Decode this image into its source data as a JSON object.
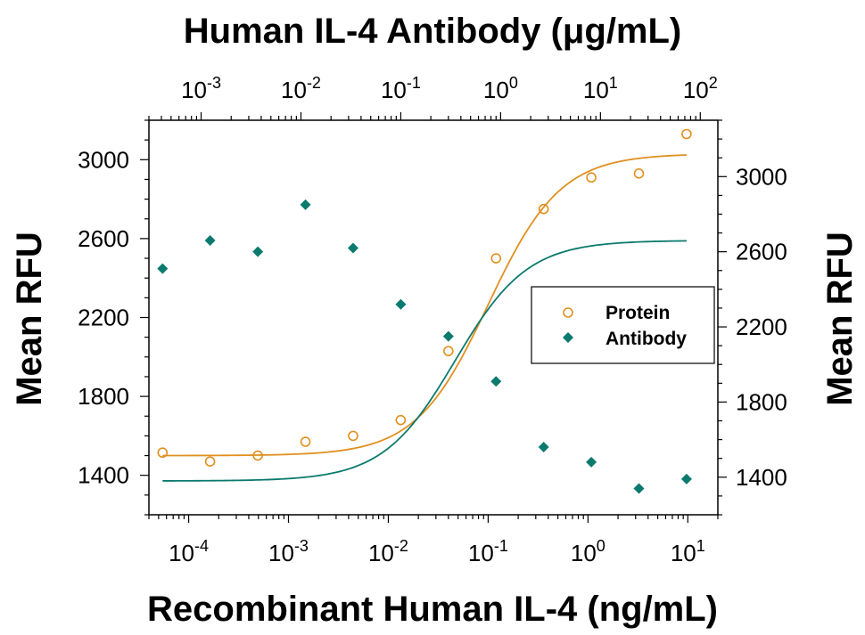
{
  "chart_data": {
    "type": "scatter",
    "title": "Human IL-4 Antibody (μg/mL)",
    "xlabel": "Recombinant Human IL-4 (ng/mL)",
    "ylabel_left": "Mean RFU",
    "ylabel_right": "Mean RFU",
    "x_scale": "log",
    "x_bottom": {
      "lim": [
        4e-05,
        20
      ],
      "tick_values": [
        0.0001,
        0.001,
        0.01,
        0.1,
        1,
        10
      ],
      "tick_labels": [
        {
          "base": "10",
          "exp": "-4"
        },
        {
          "base": "10",
          "exp": "-3"
        },
        {
          "base": "10",
          "exp": "-2"
        },
        {
          "base": "10",
          "exp": "-1"
        },
        {
          "base": "10",
          "exp": "0"
        },
        {
          "base": "10",
          "exp": "1"
        }
      ]
    },
    "x_top": {
      "lim": [
        0.0003,
        150
      ],
      "tick_values": [
        0.001,
        0.01,
        0.1,
        1,
        10,
        100
      ],
      "tick_labels": [
        {
          "base": "10",
          "exp": "-3"
        },
        {
          "base": "10",
          "exp": "-2"
        },
        {
          "base": "10",
          "exp": "-1"
        },
        {
          "base": "10",
          "exp": "0"
        },
        {
          "base": "10",
          "exp": "1"
        },
        {
          "base": "10",
          "exp": "2"
        }
      ]
    },
    "y_left": {
      "lim": [
        1200,
        3200
      ],
      "tick_values": [
        1400,
        1800,
        2200,
        2600,
        3000
      ],
      "tick_labels": [
        "1400",
        "1800",
        "2200",
        "2600",
        "3000"
      ]
    },
    "y_right": {
      "lim": [
        1200,
        3300
      ],
      "tick_values": [
        1400,
        1800,
        2200,
        2600,
        3000
      ],
      "tick_labels": [
        "1400",
        "1800",
        "2200",
        "2600",
        "3000"
      ]
    },
    "legend": {
      "placement": "center-right",
      "entries": [
        "Protein",
        "Antibody"
      ]
    },
    "series": [
      {
        "name": "Protein",
        "axis": "bottom-left",
        "marker": "open-circle",
        "color": "#e09020",
        "x": [
          5.48e-05,
          0.000164,
          0.000493,
          0.00148,
          0.00444,
          0.0133,
          0.04,
          0.12,
          0.36,
          1.08,
          3.24,
          9.72
        ],
        "y": [
          1515,
          1470,
          1500,
          1570,
          1600,
          1680,
          2030,
          2500,
          2750,
          2910,
          2930,
          3130
        ],
        "fit": {
          "bottom": 1500,
          "top": 3030,
          "ec50": 0.1,
          "hill": 1.2
        }
      },
      {
        "name": "Antibody",
        "axis": "top-right",
        "marker": "filled-diamond",
        "color": "#0b7a6e",
        "x": [
          0.000411,
          0.00123,
          0.0037,
          0.0111,
          0.0333,
          0.1,
          0.3,
          0.9,
          2.7,
          8.1,
          24.3,
          72.9
        ],
        "y": [
          2510,
          2660,
          2600,
          2850,
          2620,
          2320,
          2150,
          1910,
          1560,
          1480,
          1340,
          1390
        ],
        "fit": {
          "bottom": 1380,
          "top": 2660,
          "ec50": 0.35,
          "hill": 1.2
        }
      }
    ]
  }
}
